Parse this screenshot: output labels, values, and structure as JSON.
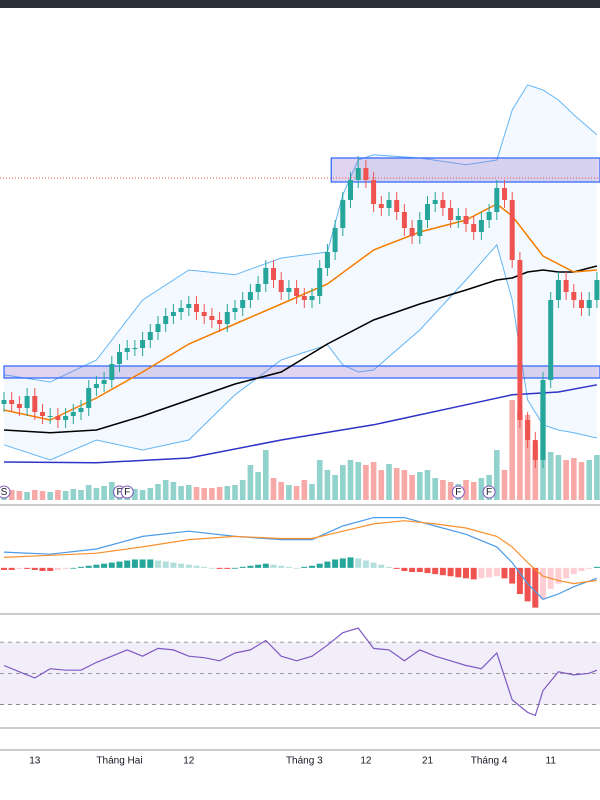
{
  "chart_data": [
    {
      "type": "candlestick",
      "categories": [
        null,
        null,
        null,
        null,
        "13",
        null,
        null,
        null,
        null,
        null,
        null,
        null,
        null,
        null,
        null,
        "Tháng Hai",
        null,
        null,
        null,
        null,
        null,
        null,
        null,
        null,
        "12",
        null,
        null,
        null,
        null,
        null,
        null,
        null,
        null,
        null,
        null,
        null,
        null,
        null,
        null,
        "Tháng 3",
        null,
        null,
        null,
        null,
        null,
        null,
        null,
        "12",
        null,
        null,
        null,
        null,
        null,
        null,
        null,
        "21",
        null,
        null,
        null,
        null,
        null,
        null,
        null,
        "Tháng 4",
        null,
        null,
        null,
        null,
        null,
        null,
        null,
        "11",
        null,
        null,
        null,
        null,
        null,
        null
      ],
      "open": [
        24,
        25,
        24,
        23,
        26,
        22,
        21,
        21,
        20,
        21,
        22,
        23,
        28,
        29,
        30,
        34,
        37,
        38,
        38,
        40,
        42,
        44,
        46,
        47,
        48,
        49,
        47,
        46,
        45,
        44,
        47,
        48,
        50,
        52,
        54,
        58,
        55,
        52,
        53,
        51,
        50,
        51,
        58,
        62,
        68,
        75,
        80,
        83,
        80,
        74,
        73,
        75,
        72,
        68,
        66,
        70,
        74,
        75,
        73,
        70,
        71,
        69,
        67,
        70,
        72,
        78,
        75,
        60,
        20,
        15,
        10,
        30,
        50,
        55,
        52,
        50,
        48,
        50
      ],
      "high": [
        27,
        27,
        26,
        28,
        28,
        24,
        23,
        23,
        23,
        24,
        25,
        30,
        31,
        32,
        36,
        39,
        40,
        40,
        42,
        44,
        46,
        48,
        49,
        50,
        51,
        51,
        49,
        48,
        47,
        49,
        50,
        52,
        54,
        56,
        60,
        60,
        57,
        55,
        55,
        53,
        53,
        60,
        64,
        70,
        77,
        82,
        86,
        85,
        82,
        76,
        77,
        77,
        74,
        70,
        72,
        76,
        77,
        77,
        75,
        73,
        73,
        71,
        72,
        74,
        80,
        80,
        77,
        62,
        22,
        17,
        32,
        52,
        57,
        57,
        54,
        52,
        52,
        57
      ],
      "low": [
        22,
        22,
        21,
        21,
        20,
        19,
        19,
        18,
        18,
        19,
        20,
        21,
        26,
        27,
        28,
        32,
        35,
        36,
        36,
        38,
        40,
        42,
        44,
        45,
        46,
        45,
        44,
        43,
        42,
        42,
        45,
        46,
        48,
        50,
        52,
        53,
        50,
        50,
        49,
        48,
        48,
        49,
        56,
        60,
        66,
        73,
        78,
        78,
        72,
        71,
        71,
        70,
        66,
        64,
        64,
        68,
        72,
        71,
        68,
        68,
        67,
        65,
        65,
        68,
        70,
        73,
        58,
        18,
        13,
        8,
        8,
        28,
        48,
        50,
        48,
        46,
        46,
        48
      ],
      "close": [
        25,
        24,
        23,
        26,
        22,
        21,
        21,
        20,
        21,
        22,
        23,
        28,
        29,
        30,
        34,
        37,
        38,
        38,
        40,
        42,
        44,
        46,
        47,
        48,
        49,
        47,
        46,
        45,
        44,
        47,
        48,
        50,
        52,
        54,
        58,
        55,
        52,
        53,
        51,
        50,
        51,
        58,
        62,
        68,
        75,
        80,
        83,
        80,
        74,
        73,
        75,
        72,
        68,
        66,
        70,
        74,
        75,
        73,
        70,
        71,
        69,
        67,
        70,
        72,
        78,
        75,
        60,
        20,
        15,
        10,
        30,
        50,
        55,
        52,
        50,
        48,
        50,
        55
      ],
      "up_color": "#26a69a",
      "down_color": "#ef5350",
      "ylim": [
        0,
        125
      ],
      "bands": {
        "x": [
          0,
          6,
          12,
          18,
          24,
          30,
          36,
          42,
          44,
          46,
          48,
          54,
          60,
          64,
          66,
          68,
          70,
          72,
          74,
          77
        ],
        "upper": [
          31.3,
          29.5,
          35,
          50,
          57.5,
          56.3,
          60.5,
          62,
          76.3,
          85,
          86.3,
          85.5,
          83.8,
          85,
          97.5,
          103.8,
          102.5,
          100,
          96.3,
          91.3
        ],
        "lower": [
          13.8,
          10,
          15,
          12.5,
          15,
          26.3,
          35,
          38.8,
          33.8,
          32,
          32.5,
          42.5,
          55,
          63.8,
          50,
          25,
          18.8,
          17.5,
          16.8,
          15.5
        ],
        "color": "#64b5f6"
      },
      "overlays": [
        {
          "color": "#000000",
          "x": [
            0,
            6,
            12,
            18,
            24,
            30,
            36,
            42,
            48,
            54,
            60,
            64,
            66,
            68,
            70,
            72,
            74,
            77
          ],
          "values": [
            17.5,
            16.8,
            17.5,
            21,
            25,
            29,
            32,
            39,
            45,
            49,
            52.5,
            55,
            55.5,
            57,
            57.5,
            57,
            57,
            58.5
          ]
        },
        {
          "color": "#f57c00",
          "x": [
            0,
            6,
            12,
            18,
            24,
            30,
            36,
            42,
            48,
            54,
            60,
            64,
            66,
            68,
            70,
            72,
            74,
            77
          ],
          "values": [
            22.5,
            20,
            25.5,
            32,
            39,
            44,
            49,
            54,
            62.5,
            67,
            70,
            74,
            71,
            66,
            61,
            59,
            57,
            57.5
          ]
        },
        {
          "color": "#2f33c8",
          "x": [
            0,
            12,
            24,
            36,
            48,
            60,
            66,
            72,
            77
          ],
          "values": [
            9.5,
            9.3,
            10.5,
            15,
            18.8,
            23.8,
            26.3,
            27,
            28.8
          ]
        }
      ],
      "zones": [
        {
          "from": 79.5,
          "to": 85.5,
          "start": 42.5
        },
        {
          "from": 30.5,
          "to": 33.5,
          "start": 0
        }
      ],
      "level_line": 80.5,
      "volume": {
        "vlim": [
          0,
          100
        ],
        "values": [
          12,
          10,
          9,
          8,
          10,
          9,
          8,
          10,
          9,
          11,
          10,
          15,
          12,
          14,
          18,
          12,
          14,
          11,
          10,
          12,
          16,
          20,
          18,
          14,
          15,
          13,
          12,
          12,
          13,
          14,
          15,
          20,
          35,
          28,
          50,
          22,
          18,
          15,
          14,
          20,
          16,
          40,
          30,
          25,
          35,
          40,
          38,
          35,
          38,
          30,
          36,
          32,
          30,
          25,
          28,
          30,
          22,
          20,
          18,
          16,
          20,
          18,
          22,
          25,
          50,
          30,
          100,
          90,
          85,
          55,
          110,
          48,
          45,
          40,
          42,
          38,
          40,
          45
        ]
      },
      "events": [
        {
          "label": "S",
          "index": 0
        },
        {
          "label": "F",
          "index": 15
        },
        {
          "label": "F",
          "index": 16
        },
        {
          "label": "F",
          "index": 59
        },
        {
          "label": "F",
          "index": 63
        }
      ]
    },
    {
      "type": "macd",
      "ylim": [
        -45,
        60
      ],
      "histogram": [
        -2,
        -2,
        -1,
        -1,
        -2,
        -3,
        -3,
        -2,
        -1,
        0,
        1,
        2,
        3,
        4,
        5,
        6,
        7,
        8,
        8,
        8,
        7,
        6,
        5,
        4,
        3,
        2,
        1,
        0,
        -1,
        -1,
        0,
        1,
        2,
        3,
        4,
        3,
        2,
        1,
        0,
        1,
        2,
        4,
        6,
        8,
        9,
        10,
        9,
        7,
        5,
        3,
        1,
        -1,
        -3,
        -4,
        -4,
        -5,
        -6,
        -7,
        -8,
        -9,
        -10,
        -11,
        -10,
        -9,
        -8,
        -10,
        -15,
        -25,
        -32,
        -38,
        -30,
        -20,
        -15,
        -10,
        -6,
        -3,
        -1,
        1
      ],
      "x": [
        0,
        6,
        12,
        18,
        24,
        30,
        36,
        40,
        44,
        48,
        52,
        56,
        60,
        64,
        66,
        68,
        70,
        72,
        74,
        77
      ],
      "macd": {
        "color": "#4a9be8",
        "values": [
          15,
          13,
          18,
          30,
          35,
          30,
          27,
          27,
          40,
          48,
          48,
          40,
          32,
          20,
          5,
          -15,
          -30,
          -25,
          -18,
          -10
        ]
      },
      "signal": {
        "color": "#f7912f",
        "values": [
          10,
          12,
          14,
          20,
          27,
          30,
          28,
          28,
          35,
          42,
          45,
          42,
          38,
          30,
          20,
          5,
          -8,
          -12,
          -15,
          -12
        ]
      }
    },
    {
      "type": "rsi",
      "ylim": [
        15,
        88
      ],
      "levels": [
        30,
        50,
        70
      ],
      "color": "#7e57c2",
      "x": [
        0,
        2,
        4,
        6,
        8,
        10,
        12,
        14,
        16,
        18,
        20,
        22,
        24,
        26,
        28,
        30,
        32,
        34,
        36,
        38,
        40,
        42,
        44,
        46,
        48,
        50,
        52,
        54,
        56,
        58,
        60,
        62,
        64,
        66,
        68,
        69,
        70,
        72,
        74,
        76,
        77
      ],
      "values": [
        55,
        51,
        47,
        53,
        52,
        52,
        57,
        61,
        65,
        61,
        66,
        65,
        61,
        60,
        58,
        63,
        65,
        71,
        61,
        58,
        61,
        68,
        76,
        79,
        66,
        65,
        58,
        65,
        61,
        58,
        55,
        53,
        63,
        33,
        25,
        23,
        39,
        51,
        49,
        50,
        52
      ]
    }
  ]
}
